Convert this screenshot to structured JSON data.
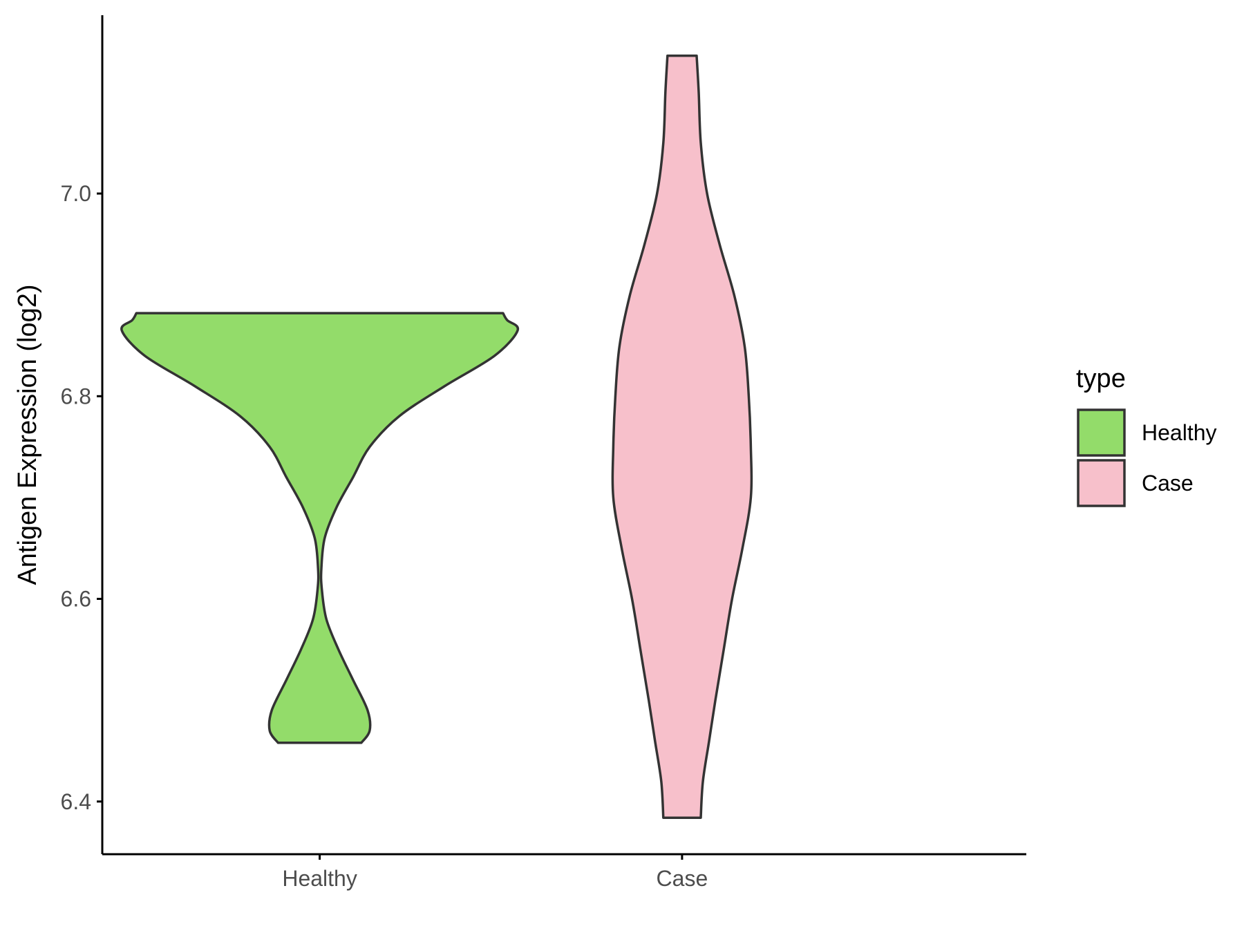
{
  "chart_data": {
    "type": "violin",
    "title": "",
    "xlabel": "",
    "ylabel": "Antigen Expression (log2)",
    "categories": [
      "Healthy",
      "Case"
    ],
    "yticks": [
      6.4,
      6.6,
      6.8,
      7.0
    ],
    "ytick_labels": [
      "6.4",
      "6.6",
      "6.8",
      "7.0"
    ],
    "ylim": [
      6.348,
      7.176
    ],
    "grid": false,
    "legend": {
      "title": "type",
      "placement": "right",
      "items": [
        {
          "label": "Healthy",
          "color": "#93dc6a"
        },
        {
          "label": "Case",
          "color": "#f7c0cb"
        }
      ]
    },
    "series": [
      {
        "name": "Healthy",
        "color": "#93dc6a",
        "profile": [
          [
            6.458,
            0.1
          ],
          [
            6.47,
            0.12
          ],
          [
            6.49,
            0.115
          ],
          [
            6.52,
            0.08
          ],
          [
            6.55,
            0.045
          ],
          [
            6.58,
            0.016
          ],
          [
            6.61,
            0.005
          ],
          [
            6.63,
            0.004
          ],
          [
            6.66,
            0.012
          ],
          [
            6.69,
            0.04
          ],
          [
            6.72,
            0.08
          ],
          [
            6.75,
            0.12
          ],
          [
            6.78,
            0.19
          ],
          [
            6.81,
            0.3
          ],
          [
            6.84,
            0.42
          ],
          [
            6.865,
            0.475
          ],
          [
            6.875,
            0.45
          ],
          [
            6.882,
            0.44
          ]
        ]
      },
      {
        "name": "Case",
        "color": "#f7c0cb",
        "profile": [
          [
            6.384,
            0.045
          ],
          [
            6.42,
            0.05
          ],
          [
            6.46,
            0.065
          ],
          [
            6.5,
            0.08
          ],
          [
            6.55,
            0.1
          ],
          [
            6.6,
            0.12
          ],
          [
            6.65,
            0.145
          ],
          [
            6.7,
            0.165
          ],
          [
            6.75,
            0.165
          ],
          [
            6.8,
            0.16
          ],
          [
            6.85,
            0.15
          ],
          [
            6.9,
            0.125
          ],
          [
            6.95,
            0.09
          ],
          [
            7.0,
            0.06
          ],
          [
            7.05,
            0.045
          ],
          [
            7.1,
            0.04
          ],
          [
            7.136,
            0.035
          ]
        ]
      }
    ]
  }
}
